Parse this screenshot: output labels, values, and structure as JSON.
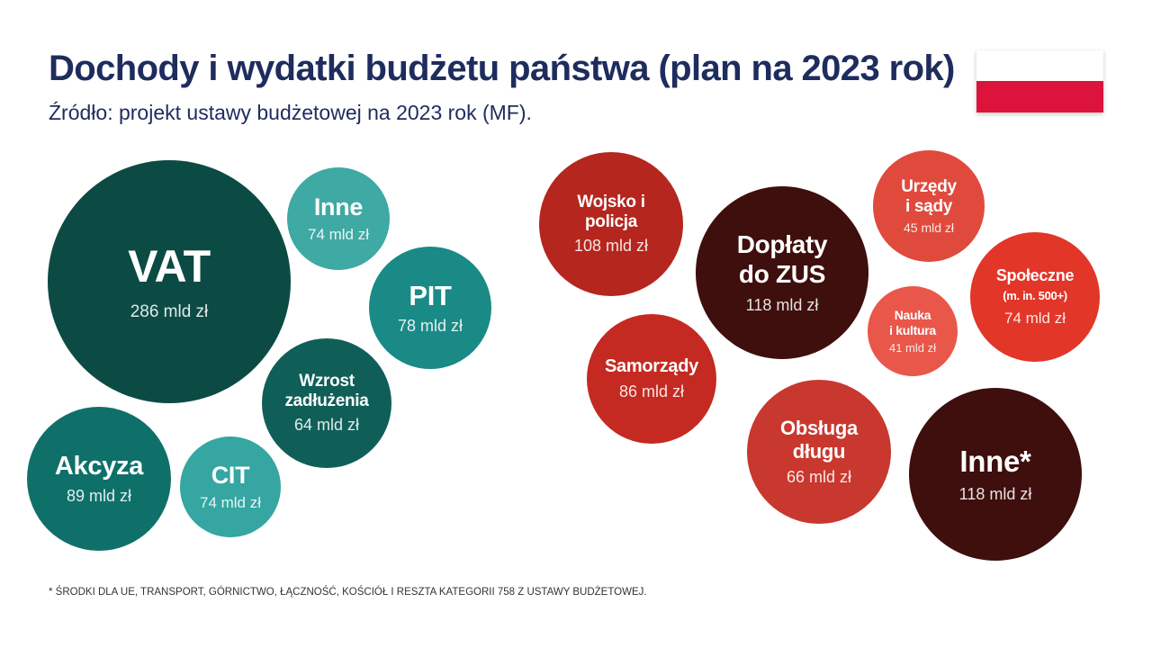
{
  "title": "Dochody i wydatki budżetu państwa (plan na 2023 rok)",
  "subtitle": "Źródło: projekt ustawy budżetowej na 2023 rok (MF).",
  "footnote": "*  ŚRODKI DLA UE,  TRANSPORT, GÓRNICTWO, ŁĄCZNOŚĆ,  KOŚCIÓŁ I RESZTA KATEGORII 758 Z USTAWY BUDŻETOWEJ.",
  "flag_colors": {
    "top": "#ffffff",
    "bottom": "#dc143c"
  },
  "chart_data": [
    {
      "type": "bubble",
      "unit": "mld zł",
      "items": [
        {
          "label": "VAT",
          "value": 286,
          "value_label": "286 mld zł",
          "color": "#0c4b44"
        },
        {
          "label": "Inne",
          "value": 74,
          "value_label": "74 mld zł",
          "color": "#3fa9a4"
        },
        {
          "label": "PIT",
          "value": 78,
          "value_label": "78 mld zł",
          "color": "#1a8a86"
        },
        {
          "label": "Wzrost\nzadłużenia",
          "value": 64,
          "value_label": "64 mld zł",
          "color": "#0f5f58"
        },
        {
          "label": "Akcyza",
          "value": 89,
          "value_label": "89 mld zł",
          "color": "#0f706a"
        },
        {
          "label": "CIT",
          "value": 74,
          "value_label": "74 mld zł",
          "color": "#35a6a1"
        }
      ]
    },
    {
      "type": "bubble",
      "unit": "mld zł",
      "items": [
        {
          "label": "Wojsko i\npolicja",
          "value": 108,
          "value_label": "108 mld zł",
          "color": "#b5261e"
        },
        {
          "label": "Dopłaty\ndo ZUS",
          "value": 118,
          "value_label": "118 mld zł",
          "color": "#3e0f0d"
        },
        {
          "label": "Urzędy\ni sądy",
          "value": 45,
          "value_label": "45 mld zł",
          "color": "#e04a3c"
        },
        {
          "label": "Społeczne\n(m. in. 500+)",
          "value": 74,
          "value_label": "74 mld zł",
          "color": "#e23629"
        },
        {
          "label": "Nauka\ni kultura",
          "value": 41,
          "value_label": "41 mld zł",
          "color": "#e9574a"
        },
        {
          "label": "Samorządy",
          "value": 86,
          "value_label": "86 mld zł",
          "color": "#c42a21"
        },
        {
          "label": "Obsługa\ndługu",
          "value": 66,
          "value_label": "66 mld zł",
          "color": "#c8382e"
        },
        {
          "label": "Inne*",
          "value": 118,
          "value_label": "118 mld zł",
          "color": "#3e0f0d"
        }
      ]
    }
  ]
}
